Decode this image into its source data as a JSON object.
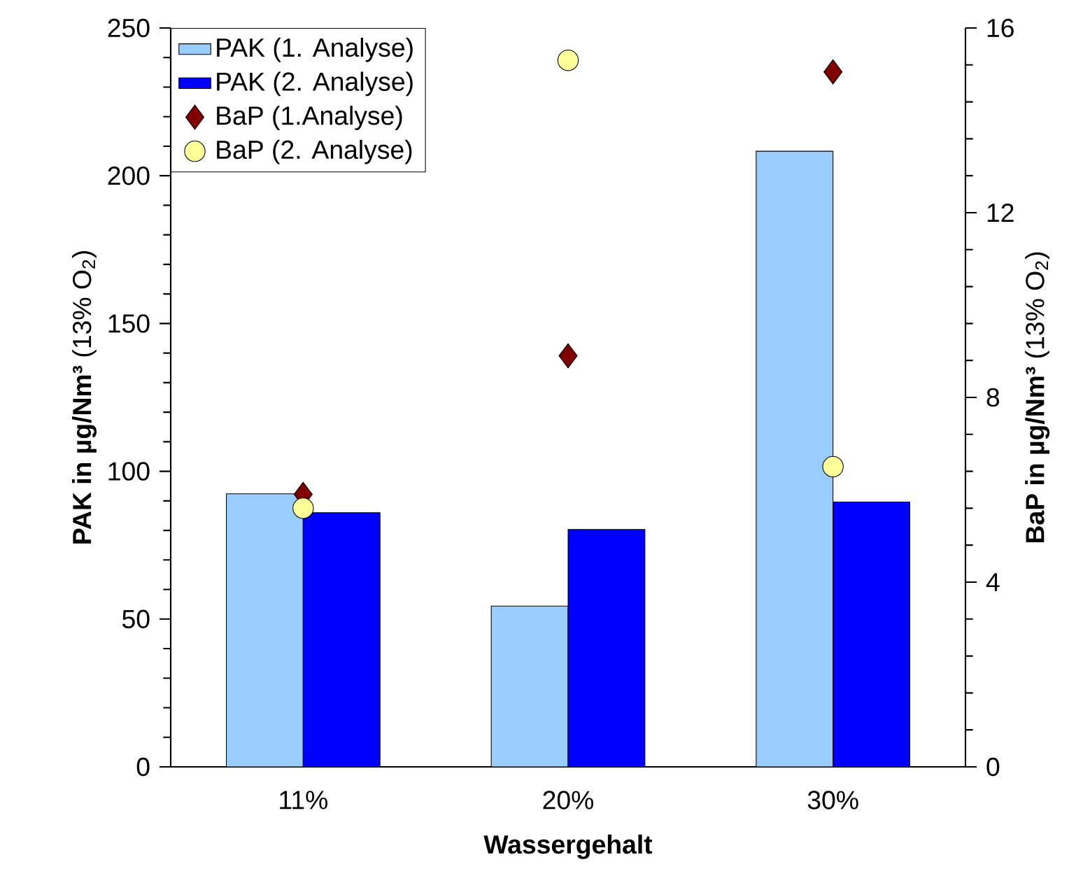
{
  "chart_data": {
    "type": "bar",
    "xlabel": "Wassergehalt",
    "ylabel": "**PAK in µg/Nm³** (13% O$_{2}$)",
    "y2label": "**BaP in µg/Nm³** (13% O$_{2}$)",
    "categories": [
      "11%",
      "20%",
      "30%"
    ],
    "ylim": [
      0,
      250
    ],
    "yticks": [
      0,
      50,
      100,
      150,
      200,
      250
    ],
    "y2lim": [
      0,
      16
    ],
    "y2ticks": [
      0,
      4,
      8,
      12,
      16
    ],
    "legend": "top left",
    "grid": false,
    "series": [
      {
        "name": "PAK (1. Analyse)",
        "color": "#99ccff",
        "values": [
          92.4,
          54.4,
          208.3
        ]
      },
      {
        "name": "PAK (2. Analyse)",
        "color": "#0000ff",
        "values": [
          86,
          80.3,
          89.6
        ]
      },
      {
        "name": "BaP (1.Analyse)",
        "type": "scatter",
        "axis": "y2",
        "marker": "diamond",
        "color": "#800000",
        "values": [
          5.9,
          8.9,
          15.05
        ]
      },
      {
        "name": "BaP (2. Analyse)",
        "type": "scatter",
        "axis": "y2",
        "marker": "circle",
        "color": "#ffff99",
        "values": [
          5.6,
          15.3,
          6.5
        ]
      }
    ]
  }
}
